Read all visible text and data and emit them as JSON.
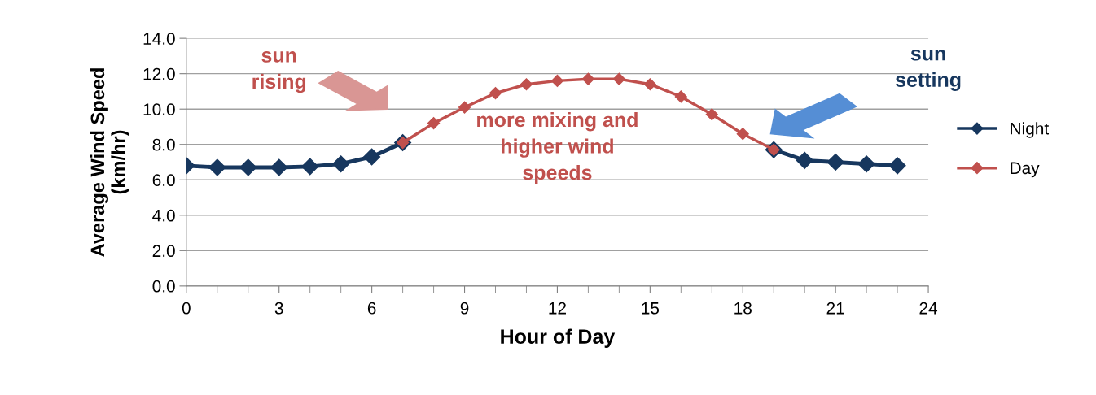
{
  "chart_data": {
    "type": "line",
    "xlabel": "Hour of Day",
    "ylabel": "Average Wind Speed\n(km/hr)",
    "series": [
      {
        "name": "Night",
        "color": "#17375e",
        "x": [
          0,
          1,
          2,
          3,
          4,
          5,
          6,
          7,
          8,
          19,
          20,
          21,
          22,
          23
        ],
        "values": [
          6.8,
          6.7,
          6.7,
          6.7,
          6.75,
          6.9,
          7.3,
          8.1,
          null,
          7.7,
          7.1,
          7.0,
          6.9,
          6.8
        ]
      },
      {
        "name": "Day",
        "color": "#c0504d",
        "x": [
          7,
          8,
          9,
          10,
          11,
          12,
          13,
          14,
          15,
          16,
          17,
          18,
          19
        ],
        "values": [
          8.1,
          9.2,
          10.1,
          10.9,
          11.4,
          11.6,
          11.7,
          11.7,
          11.4,
          10.7,
          9.7,
          8.6,
          7.7
        ]
      }
    ],
    "xlim": [
      0,
      24
    ],
    "xticks": [
      0,
      3,
      6,
      9,
      12,
      15,
      18,
      21,
      24
    ],
    "ylim": [
      0,
      14
    ],
    "yticks": [
      {
        "value": 0,
        "label": "0.0"
      },
      {
        "value": 2,
        "label": "2.0"
      },
      {
        "value": 4,
        "label": "4.0"
      },
      {
        "value": 6,
        "label": "6.0"
      },
      {
        "value": 8,
        "label": "8.0"
      },
      {
        "value": 10,
        "label": "10.0"
      },
      {
        "value": 12,
        "label": "12.0"
      },
      {
        "value": 14,
        "label": "14.0"
      }
    ],
    "grid": "y",
    "legend": "right",
    "marker": "diamond",
    "line_style": "solid",
    "annotations": [
      "sun\nrising",
      "sun\nsetting",
      "more mixing and\nhigher wind\nspeeds"
    ]
  }
}
